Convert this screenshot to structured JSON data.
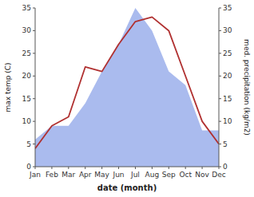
{
  "chart_data": {
    "type": "line",
    "xlabel": "date (month)",
    "ylabel": "max temp (C)",
    "y2label": "med. precipitation (kg/m2)",
    "categories": [
      "Jan",
      "Feb",
      "Mar",
      "Apr",
      "May",
      "Jun",
      "Jul",
      "Aug",
      "Sep",
      "Oct",
      "Nov",
      "Dec"
    ],
    "series": [
      {
        "type": "area",
        "color": "#aabbee",
        "axis": "y2",
        "values": [
          6,
          9,
          9,
          14,
          21,
          27,
          35,
          30,
          21,
          18,
          8,
          8
        ]
      },
      {
        "type": "line",
        "color": "#b03030",
        "values": [
          4,
          9,
          11,
          22,
          21,
          27,
          32,
          33,
          30,
          20,
          10,
          5
        ]
      }
    ],
    "ylim": [
      0,
      35
    ],
    "yticks": [
      0,
      5,
      10,
      15,
      20,
      25,
      30,
      35
    ],
    "y2lim": [
      0,
      35
    ],
    "y2ticks": [
      0,
      5,
      10,
      15,
      20,
      25,
      30,
      35
    ],
    "grid": false
  }
}
